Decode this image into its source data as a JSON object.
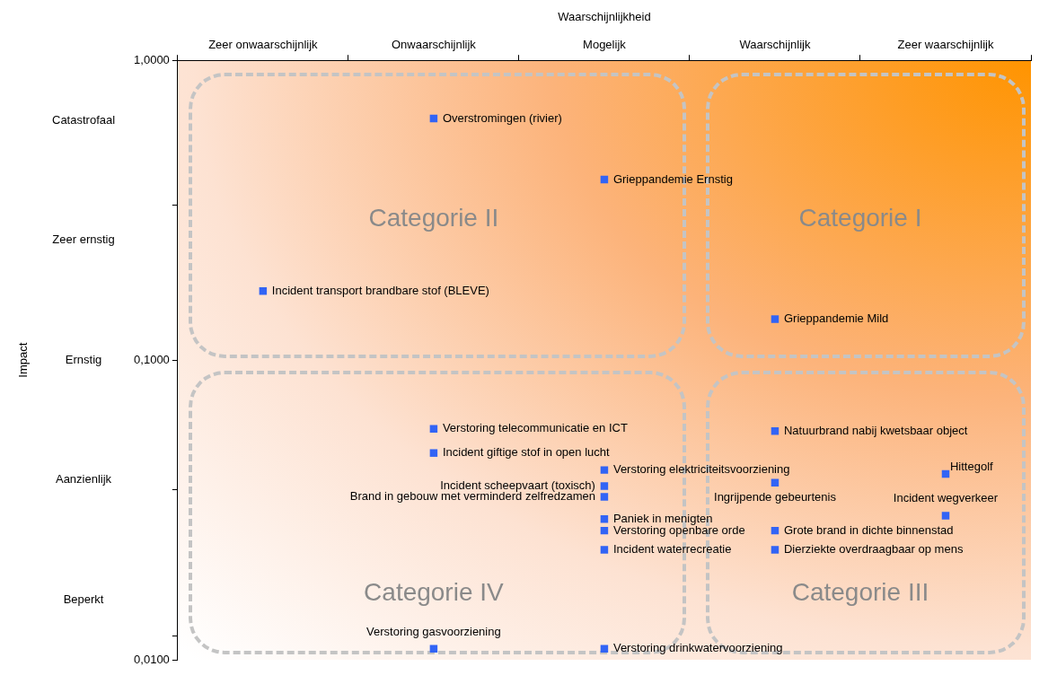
{
  "chart_data": {
    "type": "scatter",
    "xlabel": "Waarschijnlijkheid",
    "categories": [
      "Zeer onwaarschijnlijk",
      "Onwaarschijnlijk",
      "Mogelijk",
      "Waarschijnlijk",
      "Zeer waarschijnlijk"
    ],
    "log": "y",
    "ylim": [
      0.01,
      1
    ],
    "yticks": [
      {
        "value": 1,
        "label": "1,0000"
      },
      {
        "value": 0.33,
        "label": null
      },
      {
        "value": 0.1,
        "label": "0,1000"
      },
      {
        "value": 0.037,
        "label": null
      },
      {
        "value": 0.012,
        "label": null
      },
      {
        "value": 0.01,
        "label": "0,0100"
      }
    ],
    "y2_categories": [
      "Catastrofaal",
      "Zeer ernstig",
      "Ernstig",
      "Aanzienlijk",
      "Beperkt"
    ],
    "grid": false,
    "legend": false,
    "marker": "square",
    "annotations": [
      "Categorie II",
      "Categorie I",
      "Categorie IV",
      "Categorie III",
      "Impact"
    ],
    "series": [
      {
        "name": "Overstromingen (rivier)",
        "color": "#3264f5",
        "x": [
          "Onwaarschijnlijk"
        ],
        "values": [
          0.64
        ]
      },
      {
        "name": "Grieppandemie Ernstig",
        "color": "#3264f5",
        "x": [
          "Mogelijk"
        ],
        "values": [
          0.4
        ]
      },
      {
        "name": "Incident transport brandbare stof (BLEVE)",
        "color": "#3264f5",
        "x": [
          "Zeer onwaarschijnlijk"
        ],
        "values": [
          0.17
        ]
      },
      {
        "name": "Grieppandemie Mild",
        "color": "#3264f5",
        "x": [
          "Waarschijnlijk"
        ],
        "values": [
          0.137
        ]
      },
      {
        "name": "Verstoring telecommunicatie en ICT",
        "color": "#3264f5",
        "x": [
          "Onwaarschijnlijk"
        ],
        "values": [
          0.059
        ]
      },
      {
        "name": "Incident giftige stof in open lucht",
        "color": "#3264f5",
        "x": [
          "Onwaarschijnlijk"
        ],
        "values": [
          0.049
        ]
      },
      {
        "name": "Verstoring elektriciteitsvoorziening",
        "color": "#3264f5",
        "x": [
          "Mogelijk"
        ],
        "values": [
          0.043
        ]
      },
      {
        "name": "Incident scheepvaart (toxisch)",
        "color": "#3264f5",
        "x": [
          "Mogelijk"
        ],
        "values": [
          0.038
        ]
      },
      {
        "name": "Brand in gebouw met verminderd zelfredzamen",
        "color": "#3264f5",
        "x": [
          "Mogelijk"
        ],
        "values": [
          0.035
        ]
      },
      {
        "name": "Paniek in menigten",
        "color": "#3264f5",
        "x": [
          "Mogelijk"
        ],
        "values": [
          0.0295
        ]
      },
      {
        "name": "Verstoring openbare orde",
        "color": "#3264f5",
        "x": [
          "Mogelijk"
        ],
        "values": [
          0.027
        ]
      },
      {
        "name": "Incident waterrecreatie",
        "color": "#3264f5",
        "x": [
          "Mogelijk"
        ],
        "values": [
          0.0233
        ]
      },
      {
        "name": "Verstoring gasvoorziening",
        "color": "#3264f5",
        "x": [
          "Onwaarschijnlijk"
        ],
        "values": [
          0.0109
        ]
      },
      {
        "name": "Verstoring drinkwatervoorziening",
        "color": "#3264f5",
        "x": [
          "Mogelijk"
        ],
        "values": [
          0.0109
        ]
      },
      {
        "name": "Natuurbrand nabij kwetsbaar object",
        "color": "#3264f5",
        "x": [
          "Waarschijnlijk"
        ],
        "values": [
          0.058
        ]
      },
      {
        "name": "Ingrijpende gebeurtenis",
        "color": "#3264f5",
        "x": [
          "Waarschijnlijk"
        ],
        "values": [
          0.039
        ]
      },
      {
        "name": "Grote brand in dichte binnenstad",
        "color": "#3264f5",
        "x": [
          "Waarschijnlijk"
        ],
        "values": [
          0.027
        ]
      },
      {
        "name": "Dierziekte overdraagbaar op mens",
        "color": "#3264f5",
        "x": [
          "Waarschijnlijk"
        ],
        "values": [
          0.0233
        ]
      },
      {
        "name": "Hittegolf",
        "color": "#3264f5",
        "x": [
          "Zeer waarschijnlijk"
        ],
        "values": [
          0.0417
        ]
      },
      {
        "name": "Incident wegverkeer",
        "color": "#3264f5",
        "x": [
          "Zeer waarschijnlijk"
        ],
        "values": [
          0.0303
        ]
      }
    ]
  }
}
